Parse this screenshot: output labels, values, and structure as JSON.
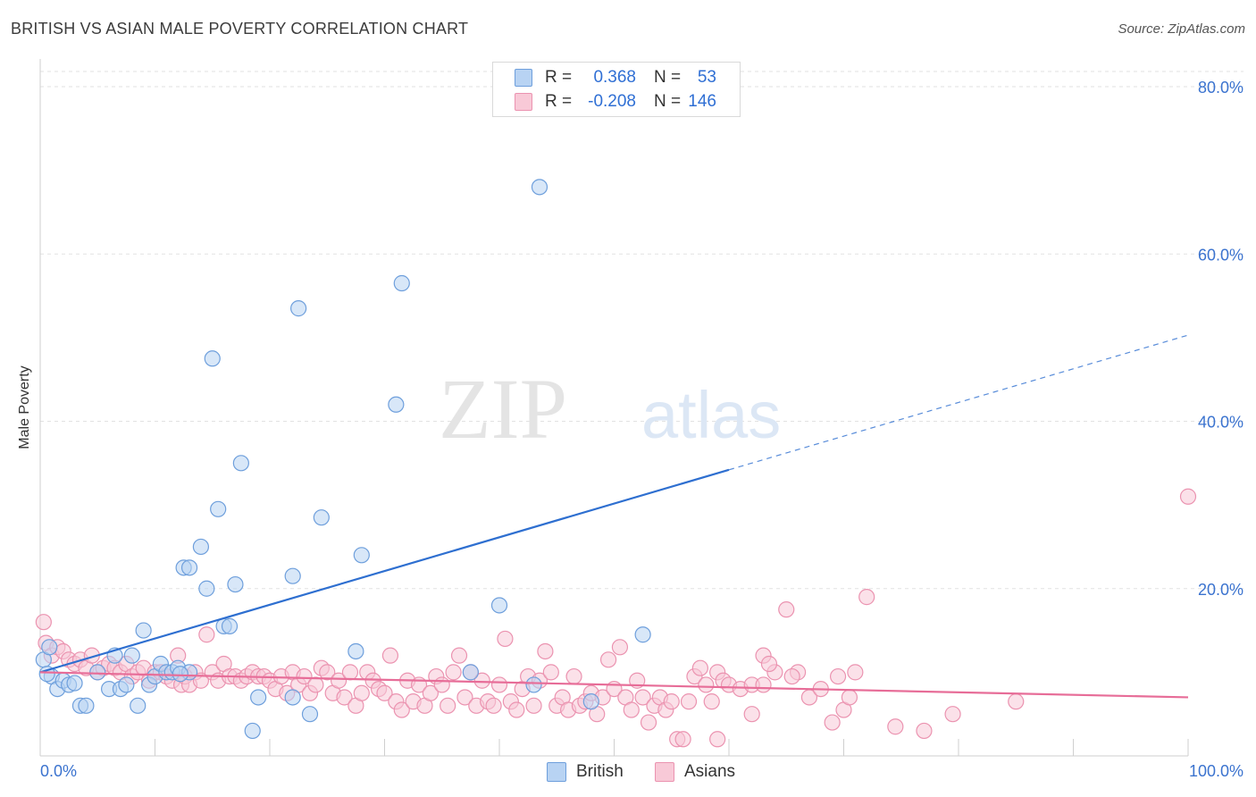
{
  "header": {
    "title": "BRITISH VS ASIAN MALE POVERTY CORRELATION CHART",
    "source": "Source: ZipAtlas.com"
  },
  "legend": {
    "rows": [
      {
        "r_label": "R =",
        "r_value": "0.368",
        "n_label": "N =",
        "n_value": "53"
      },
      {
        "r_label": "R =",
        "r_value": "-0.208",
        "n_label": "N =",
        "n_value": "146"
      }
    ]
  },
  "bottom_legend": {
    "british": "British",
    "asians": "Asians"
  },
  "watermark": {
    "zip": "ZIP",
    "atlas": "atlas"
  },
  "colors": {
    "blue_fill": "#b8d3f3",
    "blue_stroke": "#6e9fdc",
    "blue_line": "#2e6fd0",
    "pink_fill": "#f8c9d7",
    "pink_stroke": "#eb93b0",
    "pink_line": "#e76d98",
    "axis_text": "#3b73cf",
    "grid": "#e2e2e2"
  },
  "chart_data": {
    "type": "scatter",
    "title": "BRITISH VS ASIAN MALE POVERTY CORRELATION CHART",
    "xlabel": "",
    "ylabel": "Male Poverty",
    "xlim": [
      0,
      100
    ],
    "ylim": [
      0,
      85
    ],
    "x_tick_labels": [
      "0.0%",
      "100.0%"
    ],
    "y_ticks": [
      20,
      40,
      60,
      80
    ],
    "y_tick_labels": [
      "20.0%",
      "40.0%",
      "60.0%",
      "80.0%"
    ],
    "grid": true,
    "series": [
      {
        "name": "British",
        "r": 0.368,
        "n": 53,
        "trend": {
          "x0": 0,
          "y0": 10.0,
          "x1": 60,
          "y1": 34.2,
          "dash_to_x": 100,
          "dash_to_y": 50.3
        },
        "points": [
          [
            0.3,
            11.5
          ],
          [
            0.8,
            13
          ],
          [
            1,
            9.5
          ],
          [
            1.5,
            8
          ],
          [
            2,
            9
          ],
          [
            2.5,
            8.5
          ],
          [
            3.5,
            6
          ],
          [
            4,
            6
          ],
          [
            5,
            10
          ],
          [
            6,
            8
          ],
          [
            6.5,
            12
          ],
          [
            7,
            8
          ],
          [
            7.5,
            8.5
          ],
          [
            8,
            12
          ],
          [
            8.5,
            6
          ],
          [
            9,
            15
          ],
          [
            9.5,
            8.5
          ],
          [
            10,
            9.5
          ],
          [
            10.5,
            11
          ],
          [
            11,
            10
          ],
          [
            11.5,
            10
          ],
          [
            12,
            10.5
          ],
          [
            12.5,
            22.5
          ],
          [
            13,
            22.5
          ],
          [
            13,
            10
          ],
          [
            14,
            25
          ],
          [
            14.5,
            20
          ],
          [
            15,
            47.5
          ],
          [
            15.5,
            29.5
          ],
          [
            16,
            15.5
          ],
          [
            16.5,
            15.5
          ],
          [
            17,
            20.5
          ],
          [
            17.5,
            35
          ],
          [
            18.5,
            3
          ],
          [
            19,
            7
          ],
          [
            22,
            7
          ],
          [
            22,
            21.5
          ],
          [
            23.5,
            5
          ],
          [
            22.5,
            53.5
          ],
          [
            24.5,
            28.5
          ],
          [
            27.5,
            12.5
          ],
          [
            28,
            24
          ],
          [
            31,
            42
          ],
          [
            31.5,
            56.5
          ],
          [
            37.5,
            10
          ],
          [
            40,
            18
          ],
          [
            43,
            8.5
          ],
          [
            43.5,
            68
          ],
          [
            48,
            6.5
          ],
          [
            52.5,
            14.5
          ],
          [
            0.6,
            9.8
          ],
          [
            3,
            8.7
          ],
          [
            12.2,
            9.8
          ]
        ]
      },
      {
        "name": "Asians",
        "r": -0.208,
        "n": 146,
        "trend": {
          "x0": 0,
          "y0": 10.0,
          "x1": 100,
          "y1": 7.0
        },
        "points": [
          [
            0.3,
            16
          ],
          [
            0.5,
            13.5
          ],
          [
            1,
            12
          ],
          [
            1.5,
            13
          ],
          [
            2,
            12.5
          ],
          [
            2.5,
            11.5
          ],
          [
            3,
            11
          ],
          [
            3.5,
            11.5
          ],
          [
            4,
            10.5
          ],
          [
            4.5,
            12
          ],
          [
            5,
            10
          ],
          [
            5.5,
            10.5
          ],
          [
            6,
            11
          ],
          [
            6.5,
            10.5
          ],
          [
            7,
            10
          ],
          [
            7.5,
            11
          ],
          [
            8,
            9.5
          ],
          [
            8.5,
            10
          ],
          [
            9,
            10.5
          ],
          [
            9.5,
            9
          ],
          [
            10,
            10
          ],
          [
            10.5,
            10
          ],
          [
            11,
            9.5
          ],
          [
            11.5,
            9
          ],
          [
            12,
            12
          ],
          [
            12.3,
            8.5
          ],
          [
            12.6,
            9.5
          ],
          [
            13,
            8.5
          ],
          [
            13.5,
            10
          ],
          [
            14,
            9
          ],
          [
            14.5,
            14.5
          ],
          [
            15,
            10
          ],
          [
            15.5,
            9
          ],
          [
            16,
            11
          ],
          [
            16.5,
            9.5
          ],
          [
            17,
            9.5
          ],
          [
            17.5,
            9
          ],
          [
            18,
            9.5
          ],
          [
            18.5,
            10
          ],
          [
            19,
            9.5
          ],
          [
            19.5,
            9.5
          ],
          [
            20,
            9
          ],
          [
            20.5,
            8
          ],
          [
            21,
            9.5
          ],
          [
            21.5,
            7.5
          ],
          [
            22,
            10
          ],
          [
            22.5,
            8.5
          ],
          [
            23,
            9.5
          ],
          [
            23.5,
            7.5
          ],
          [
            24,
            8.5
          ],
          [
            24.5,
            10.5
          ],
          [
            25,
            10
          ],
          [
            25.5,
            7.5
          ],
          [
            26,
            9
          ],
          [
            26.5,
            7
          ],
          [
            27,
            10
          ],
          [
            27.5,
            6
          ],
          [
            28,
            7.5
          ],
          [
            28.5,
            10
          ],
          [
            29,
            9
          ],
          [
            29.5,
            8
          ],
          [
            30,
            7.5
          ],
          [
            30.5,
            12
          ],
          [
            31,
            6.5
          ],
          [
            31.5,
            5.5
          ],
          [
            32,
            9
          ],
          [
            32.5,
            6.5
          ],
          [
            33,
            8.5
          ],
          [
            33.5,
            6
          ],
          [
            34,
            7.5
          ],
          [
            34.5,
            9.5
          ],
          [
            35,
            8.5
          ],
          [
            35.5,
            6
          ],
          [
            36,
            10
          ],
          [
            36.5,
            12
          ],
          [
            37,
            7
          ],
          [
            37.5,
            10
          ],
          [
            38,
            6
          ],
          [
            38.5,
            9
          ],
          [
            39,
            6.5
          ],
          [
            39.5,
            6
          ],
          [
            40,
            8.5
          ],
          [
            40.5,
            14
          ],
          [
            41,
            6.5
          ],
          [
            41.5,
            5.5
          ],
          [
            42,
            8
          ],
          [
            42.5,
            9.5
          ],
          [
            43,
            6
          ],
          [
            43.5,
            9
          ],
          [
            44,
            12.5
          ],
          [
            44.5,
            10
          ],
          [
            45,
            6
          ],
          [
            45.5,
            7
          ],
          [
            46,
            5.5
          ],
          [
            46.5,
            9.5
          ],
          [
            47,
            6
          ],
          [
            47.5,
            6.5
          ],
          [
            48,
            7.5
          ],
          [
            48.5,
            5
          ],
          [
            49,
            7
          ],
          [
            49.5,
            11.5
          ],
          [
            50,
            8
          ],
          [
            50.5,
            13
          ],
          [
            51,
            7
          ],
          [
            51.5,
            5.5
          ],
          [
            52,
            9
          ],
          [
            52.5,
            7
          ],
          [
            53,
            4
          ],
          [
            53.5,
            6
          ],
          [
            54,
            7
          ],
          [
            54.5,
            5.5
          ],
          [
            55,
            6.5
          ],
          [
            55.5,
            2
          ],
          [
            56,
            2
          ],
          [
            56.5,
            6.5
          ],
          [
            57,
            9.5
          ],
          [
            57.5,
            10.5
          ],
          [
            58,
            8.5
          ],
          [
            58.5,
            6.5
          ],
          [
            59,
            10
          ],
          [
            59.5,
            9
          ],
          [
            60,
            8.5
          ],
          [
            61,
            8
          ],
          [
            62,
            8.5
          ],
          [
            62,
            5
          ],
          [
            63,
            12
          ],
          [
            64,
            10
          ],
          [
            65,
            17.5
          ],
          [
            66,
            10
          ],
          [
            67,
            7
          ],
          [
            68,
            8
          ],
          [
            69,
            4
          ],
          [
            69.5,
            9.5
          ],
          [
            70,
            5.5
          ],
          [
            71,
            10
          ],
          [
            72,
            19
          ],
          [
            74.5,
            3.5
          ],
          [
            77,
            3
          ],
          [
            79.5,
            5
          ],
          [
            85,
            6.5
          ],
          [
            100,
            31
          ],
          [
            63.5,
            11
          ],
          [
            63,
            8.5
          ],
          [
            65.5,
            9.5
          ],
          [
            70.5,
            7
          ],
          [
            59,
            2
          ]
        ]
      }
    ]
  }
}
